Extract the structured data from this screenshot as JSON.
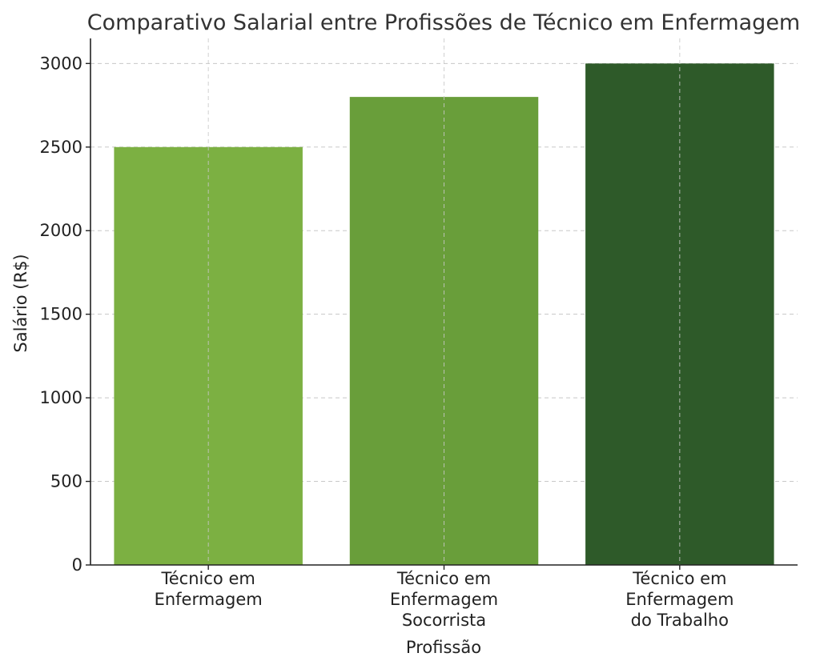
{
  "chart_data": {
    "type": "bar",
    "title": "Comparativo Salarial entre Profissões de Técnico em Enfermagem",
    "xlabel": "Profissão",
    "ylabel": "Salário (R$)",
    "categories": [
      [
        "Técnico em",
        "Enfermagem"
      ],
      [
        "Técnico em",
        "Enfermagem",
        "Socorrista"
      ],
      [
        "Técnico em",
        "Enfermagem",
        "do Trabalho"
      ]
    ],
    "values": [
      2500,
      2800,
      3000
    ],
    "colors": [
      "#7cb042",
      "#699e3a",
      "#2e5a29"
    ],
    "ylim": [
      0,
      3150
    ],
    "yticks": [
      "0",
      "500",
      "1000",
      "1500",
      "2000",
      "2500",
      "3000"
    ],
    "grid": true
  }
}
